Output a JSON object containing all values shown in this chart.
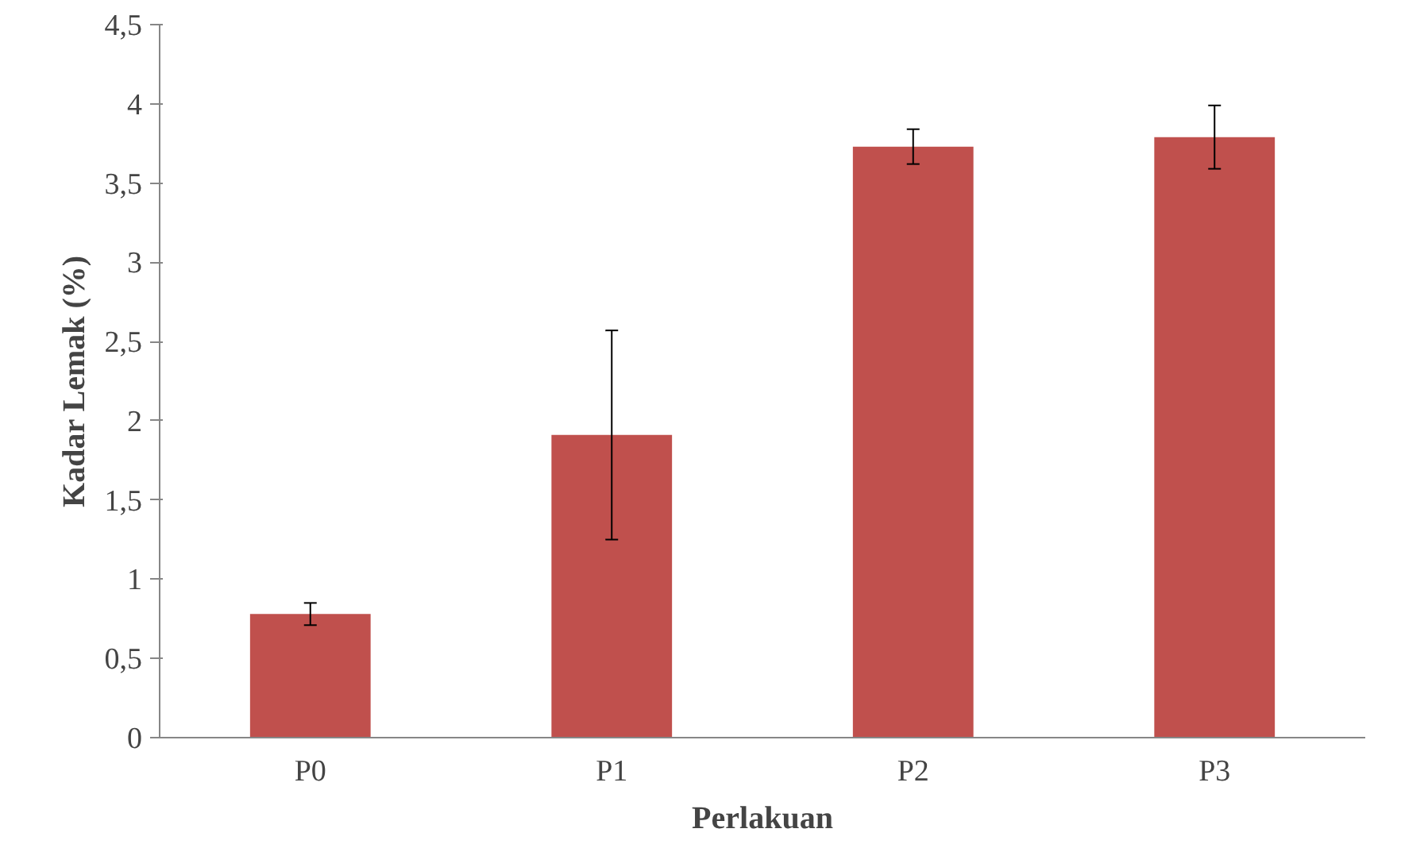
{
  "chart_data": {
    "type": "bar",
    "xlabel": "Perlakuan",
    "ylabel": "Kadar Lemak (%)",
    "categories": [
      "P0",
      "P1",
      "P2",
      "P3"
    ],
    "values": [
      0.78,
      1.91,
      3.73,
      3.79
    ],
    "errors": [
      0.07,
      0.66,
      0.11,
      0.2
    ],
    "color": "#c0504d",
    "ylim": [
      0,
      4.5
    ],
    "yticks": [
      {
        "value": 0,
        "label": "0"
      },
      {
        "value": 0.5,
        "label": "0,5"
      },
      {
        "value": 1,
        "label": "1"
      },
      {
        "value": 1.5,
        "label": "1,5"
      },
      {
        "value": 2,
        "label": "2"
      },
      {
        "value": 2.5,
        "label": "2,5"
      },
      {
        "value": 3,
        "label": "3"
      },
      {
        "value": 3.5,
        "label": "3,5"
      },
      {
        "value": 4,
        "label": "4"
      },
      {
        "value": 4.5,
        "label": "4,5"
      }
    ],
    "grid": false
  }
}
